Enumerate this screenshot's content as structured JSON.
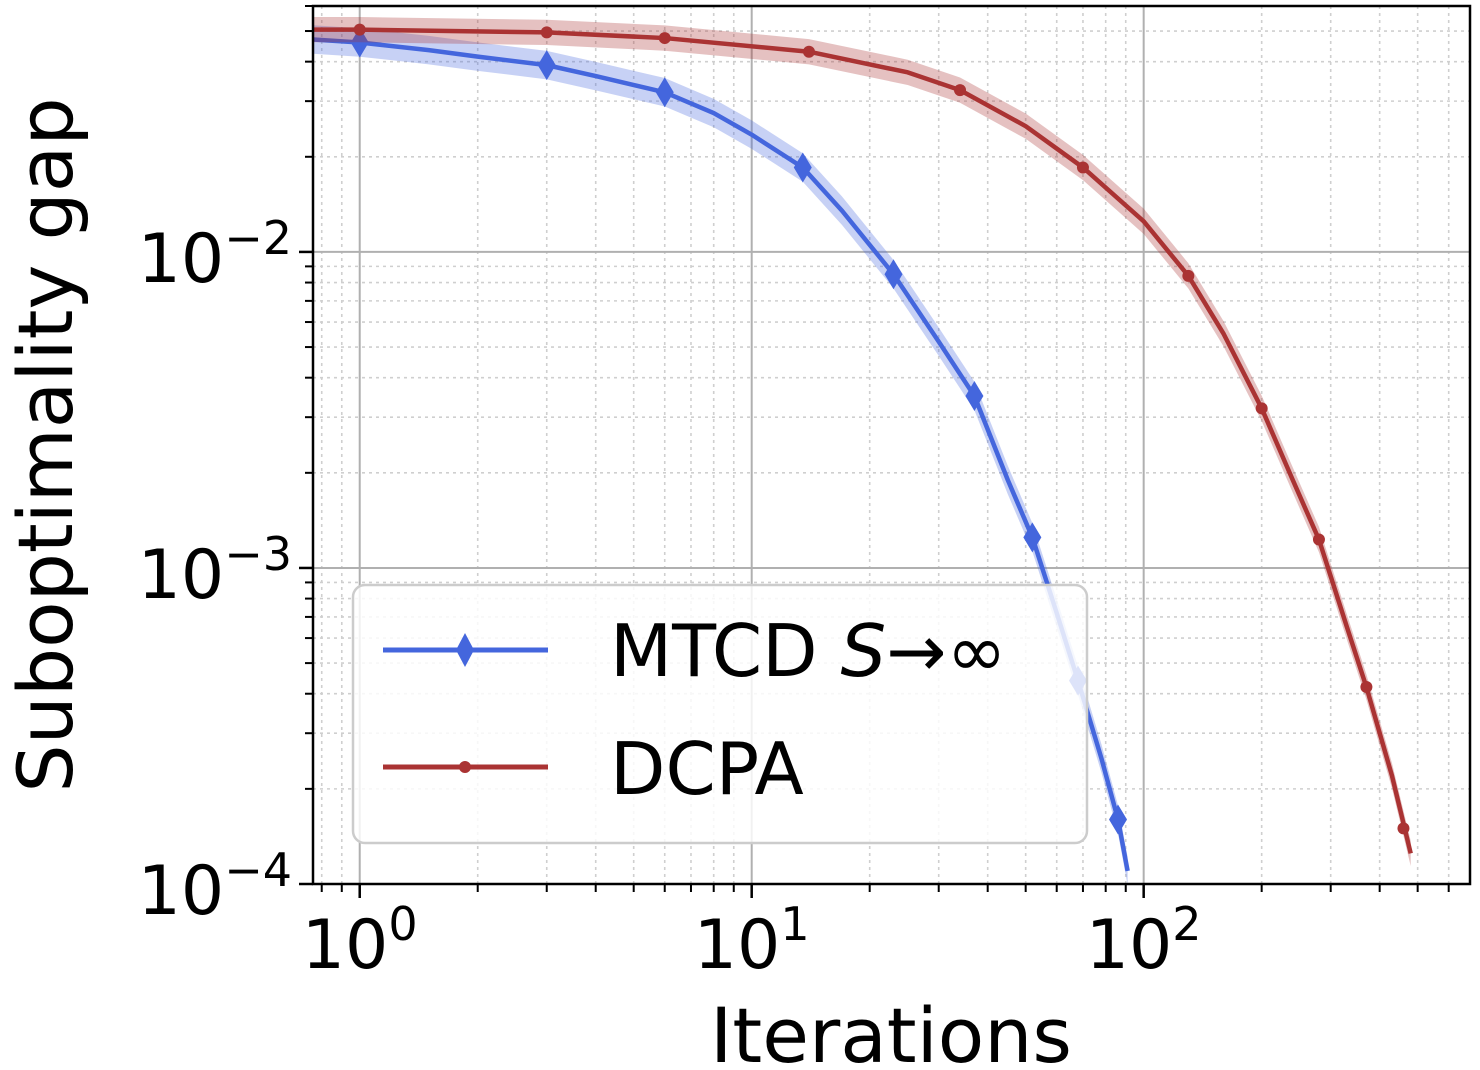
{
  "chart_data": {
    "type": "line",
    "xlabel": "Iterations",
    "ylabel": "Suboptimality gap",
    "xscale": "log",
    "yscale": "log",
    "xlim": [
      0.76,
      680
    ],
    "ylim": [
      0.0001,
      0.06
    ],
    "grid": true,
    "legend_position": "lower-left",
    "x_ticks": [
      {
        "value": 1,
        "base": "10",
        "exp": "0"
      },
      {
        "value": 10,
        "base": "10",
        "exp": "1"
      },
      {
        "value": 100,
        "base": "10",
        "exp": "2"
      }
    ],
    "y_ticks": [
      {
        "value": 0.01,
        "base": "10",
        "exp": "−2"
      },
      {
        "value": 0.001,
        "base": "10",
        "exp": "−3"
      },
      {
        "value": 0.0001,
        "base": "10",
        "exp": "−4"
      }
    ],
    "series": [
      {
        "name": "MTCD S→∞",
        "legend_prefix": "MTCD ",
        "legend_math": "S",
        "legend_suffix": "→∞",
        "color": "#4466dd",
        "marker": "diamond",
        "band_width_decades": 0.045,
        "line": {
          "x": [
            0.76,
            1,
            1.5,
            2,
            3,
            4,
            6,
            8,
            10,
            13.5,
            17,
            23,
            30,
            37,
            45,
            52,
            60,
            68,
            78,
            86,
            91
          ],
          "y": [
            0.047,
            0.046,
            0.0435,
            0.0415,
            0.039,
            0.036,
            0.032,
            0.0275,
            0.0235,
            0.0185,
            0.0135,
            0.0085,
            0.0052,
            0.0035,
            0.0019,
            0.00125,
            0.00072,
            0.00044,
            0.00025,
            0.00016,
            0.00011
          ]
        },
        "markers": {
          "x": [
            1,
            3,
            6,
            13.5,
            23,
            37,
            52,
            68,
            86
          ],
          "y": [
            0.046,
            0.039,
            0.032,
            0.0185,
            0.0085,
            0.0035,
            0.00125,
            0.00044,
            0.00016
          ]
        }
      },
      {
        "name": "DCPA",
        "legend_prefix": "DCPA",
        "legend_math": "",
        "legend_suffix": "",
        "color": "#aa3333",
        "marker": "circle",
        "band_width_decades": 0.04,
        "line": {
          "x": [
            0.76,
            1,
            3,
            6,
            14,
            25,
            34,
            50,
            70,
            100,
            130,
            160,
            200,
            240,
            280,
            330,
            370,
            430,
            480
          ],
          "y": [
            0.0505,
            0.0505,
            0.0495,
            0.0475,
            0.043,
            0.037,
            0.0325,
            0.025,
            0.0185,
            0.0125,
            0.0084,
            0.0055,
            0.0032,
            0.0019,
            0.00123,
            0.00065,
            0.00042,
            0.00022,
            0.000125
          ]
        },
        "markers": {
          "x": [
            1,
            3,
            6,
            14,
            34,
            70,
            130,
            200,
            280,
            370,
            460
          ],
          "y": [
            0.0505,
            0.0495,
            0.0475,
            0.043,
            0.0325,
            0.0185,
            0.0084,
            0.0032,
            0.00123,
            0.00042,
            0.00015
          ]
        }
      }
    ]
  }
}
